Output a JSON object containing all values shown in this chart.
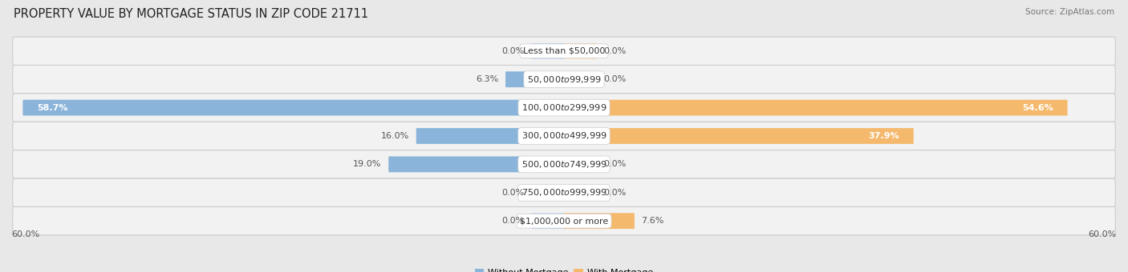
{
  "title": "PROPERTY VALUE BY MORTGAGE STATUS IN ZIP CODE 21711",
  "source": "Source: ZipAtlas.com",
  "categories": [
    "Less than $50,000",
    "$50,000 to $99,999",
    "$100,000 to $299,999",
    "$300,000 to $499,999",
    "$500,000 to $749,999",
    "$750,000 to $999,999",
    "$1,000,000 or more"
  ],
  "without_mortgage": [
    0.0,
    6.3,
    58.7,
    16.0,
    19.0,
    0.0,
    0.0
  ],
  "with_mortgage": [
    0.0,
    0.0,
    54.6,
    37.9,
    0.0,
    0.0,
    7.6
  ],
  "color_without": "#8ab4d9",
  "color_with": "#f5b96e",
  "color_without_light": "#bad3eb",
  "color_with_light": "#fad9b0",
  "axis_limit": 60.0,
  "bg_color": "#e8e8e8",
  "row_bg_color": "#d8d8d8",
  "row_inner_color": "#f2f2f2",
  "title_fontsize": 10.5,
  "source_fontsize": 7.5,
  "label_fontsize": 8,
  "category_fontsize": 8,
  "legend_fontsize": 8,
  "axis_label_fontsize": 8,
  "stub_value": 3.5
}
